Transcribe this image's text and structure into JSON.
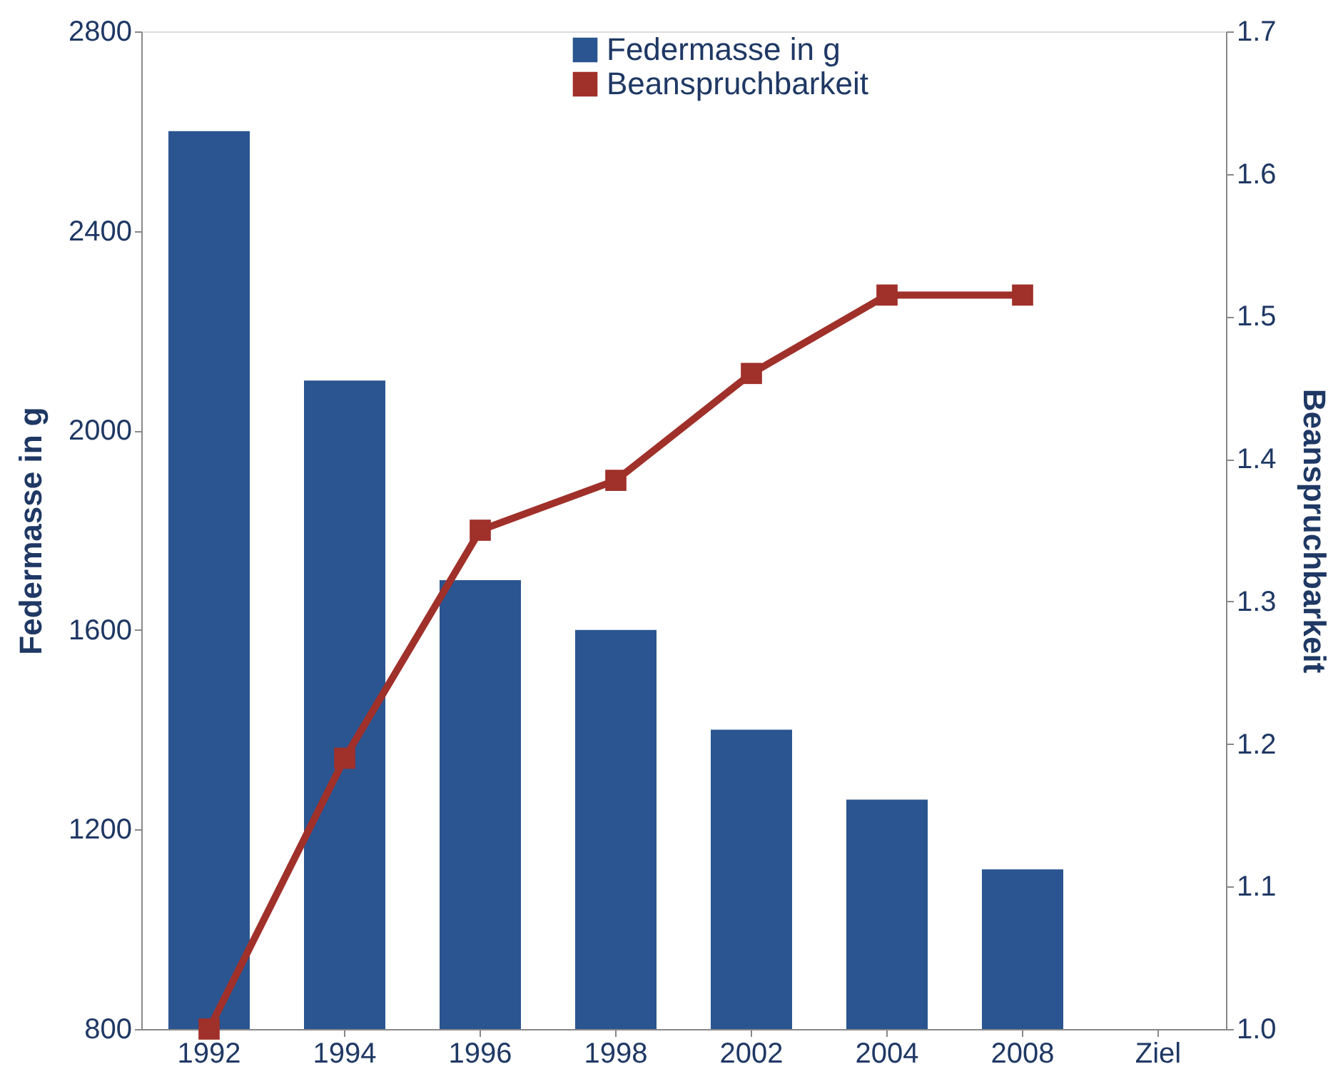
{
  "chart_data": {
    "type": "bar",
    "categories": [
      "1992",
      "1994",
      "1996",
      "1998",
      "2002",
      "2004",
      "2008",
      "Ziel"
    ],
    "ylabel": "Federmasse in g",
    "y2label": "Beanspruchbarkeit",
    "ylim": [
      800,
      2800
    ],
    "yticks": [
      800,
      1200,
      1600,
      2000,
      2400,
      2800
    ],
    "y2lim": [
      1.0,
      1.7
    ],
    "y2ticks": [
      {
        "value": 1.0,
        "label": "1.0"
      },
      1.1,
      1.2,
      1.3,
      1.4,
      1.5,
      1.6,
      1.7
    ],
    "series": [
      {
        "name": "Federmasse in g",
        "color": "#2a5590",
        "values": [
          2600,
          2100,
          1700,
          1600,
          1400,
          1260,
          1120,
          null
        ]
      },
      {
        "name": "Beanspruchbarkeit",
        "type": "line",
        "axis": "y2",
        "marker": "square",
        "color": "#a0302a",
        "values": [
          1.0,
          1.19,
          1.35,
          1.385,
          1.46,
          1.515,
          1.515,
          null
        ]
      }
    ],
    "legend": "top",
    "grid": false
  }
}
